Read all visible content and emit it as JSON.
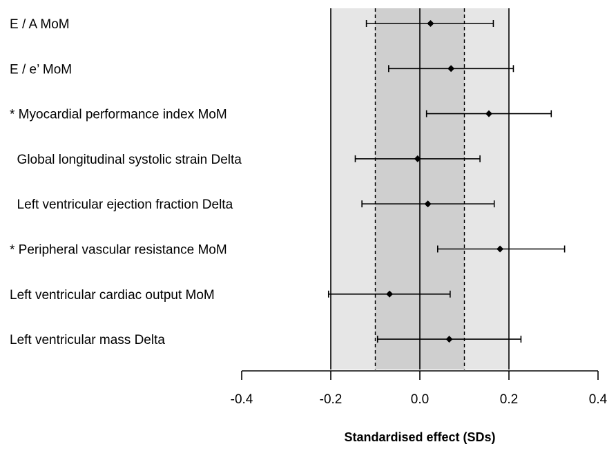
{
  "chart_data": {
    "type": "forest",
    "xlabel": "Standardised effect (SDs)",
    "xlim": [
      -0.4,
      0.4
    ],
    "x_ticks": [
      "-0.4",
      "-0.2",
      "0.0",
      "0.2",
      "0.4"
    ],
    "bands": [
      {
        "from": -0.2,
        "to": 0.2,
        "color": "#e6e6e6"
      },
      {
        "from": -0.1,
        "to": 0.1,
        "color": "#cfcfcf"
      }
    ],
    "solid_refs": [
      -0.2,
      0.0,
      0.2
    ],
    "dashed_refs": [
      -0.1,
      0.1
    ],
    "rows": [
      {
        "label": "E / A MoM",
        "estimate": 0.024,
        "lower": -0.12,
        "upper": 0.165
      },
      {
        "label": "E / e’ MoM",
        "estimate": 0.07,
        "lower": -0.07,
        "upper": 0.21
      },
      {
        "label": "* Myocardial performance index MoM",
        "estimate": 0.155,
        "lower": 0.015,
        "upper": 0.295
      },
      {
        "label": "  Global longitudinal systolic strain Delta",
        "estimate": -0.005,
        "lower": -0.145,
        "upper": 0.135
      },
      {
        "label": "  Left ventricular ejection fraction Delta",
        "estimate": 0.018,
        "lower": -0.13,
        "upper": 0.167
      },
      {
        "label": "* Peripheral vascular resistance MoM",
        "estimate": 0.18,
        "lower": 0.04,
        "upper": 0.325
      },
      {
        "label": "Left ventricular cardiac output MoM",
        "estimate": -0.068,
        "lower": -0.205,
        "upper": 0.068
      },
      {
        "label": "Left ventricular mass Delta",
        "estimate": 0.066,
        "lower": -0.095,
        "upper": 0.227
      }
    ]
  }
}
